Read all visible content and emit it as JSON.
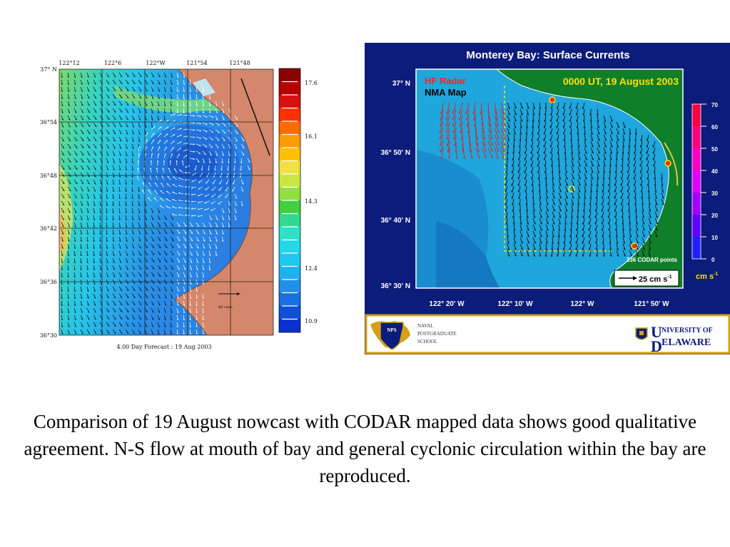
{
  "left_map": {
    "lat_labels": [
      "37° N",
      "36°54",
      "36°48",
      "36°42",
      "36°36",
      "36°30"
    ],
    "lon_labels": [
      "122°12",
      "122°6",
      "122°W",
      "121°54",
      "121°48"
    ],
    "colorbar_labels": [
      "17.6",
      "16.1",
      "14.3",
      "12.4",
      "10.9"
    ],
    "scale_label": "40 cm/s",
    "footer": "4.00 Day Forecast : 19 Aug 2003"
  },
  "right_map": {
    "title": "Monterey Bay:  Surface Currents",
    "source_line1": "HF Radar",
    "source_line2": "NMA Map",
    "timestamp": "0000 UT, 19 August 2003",
    "lat_labels": [
      "37° N",
      "36° 50' N",
      "36° 40' N",
      "36° 30' N"
    ],
    "lon_labels": [
      "122° 20' W",
      "122° 10' W",
      "122° W",
      "121° 50' W"
    ],
    "colorbar_labels": [
      "70",
      "60",
      "50",
      "40",
      "30",
      "20",
      "10",
      "0"
    ],
    "unit_label": "cm s",
    "unit_exponent": "-1",
    "codar_points": "236 CODAR points",
    "scale_label": "25 cm s",
    "scale_exponent": "-1"
  },
  "logos": {
    "nps_badge": "NPS",
    "nps_line1": "NAVAL",
    "nps_line2": "POSTGRADUATE",
    "nps_line3": "SCHOOL",
    "ud_line1": "NIVERSITY OF",
    "ud_line2": "ELAWARE"
  },
  "caption": "Comparison of 19 August nowcast with CODAR mapped data shows good qualitative agreement.  N-S flow at mouth of bay and general cyclonic circulation within the bay are reproduced."
}
